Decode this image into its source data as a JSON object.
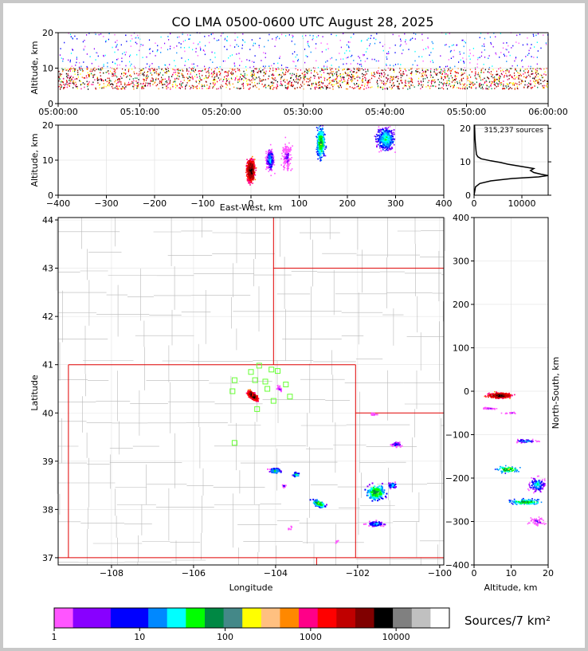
{
  "title": "CO LMA 0500-0600 UTC August 28, 2025",
  "source_count": "315,237 sources",
  "colorbar_label": "Sources/7 km²",
  "colors": {
    "frame": "#c8c8c8",
    "state_border": "#e00000",
    "county_border": "#b8b8b8",
    "station_marker": "#66ff33"
  },
  "chart_data": [
    {
      "id": "time_height",
      "type": "heatmap",
      "title": "CO LMA 0500-0600 UTC August 28, 2025",
      "xlabel": "",
      "ylabel": "Altitude, km",
      "x_ticks": [
        "05:00:00",
        "05:10:00",
        "05:20:00",
        "05:30:00",
        "05:40:00",
        "05:50:00",
        "06:00:00"
      ],
      "y_ticks": [
        0,
        10,
        20
      ],
      "ylim": [
        0,
        20
      ],
      "grid": true,
      "summary": {
        "dense_band_km": [
          4,
          10
        ],
        "sparse_top_km": 20
      }
    },
    {
      "id": "ew_height",
      "type": "heatmap",
      "xlabel": "East-West, km",
      "ylabel": "Altitude, km",
      "xlim": [
        -400,
        400
      ],
      "ylim": [
        0,
        20
      ],
      "x_ticks": [
        -400,
        -300,
        -200,
        -100,
        0,
        100,
        200,
        300,
        400
      ],
      "y_ticks": [
        0,
        10,
        20
      ],
      "grid": true,
      "clusters_x_km": [
        0,
        40,
        70,
        145,
        280
      ]
    },
    {
      "id": "alt_histogram",
      "type": "line",
      "xlabel": "",
      "ylabel": "",
      "xlim": [
        0,
        15500
      ],
      "ylim": [
        0,
        21
      ],
      "x_ticks": [
        0,
        10000
      ],
      "y_ticks": [
        0,
        10,
        20
      ],
      "annotation": "315,237 sources",
      "series": [
        {
          "x": [
            0,
            300,
            1200,
            3500,
            8000,
            13500,
            15500,
            14000,
            12500,
            11800,
            12500,
            9500,
            7000,
            5500,
            3500,
            1500,
            800,
            500,
            400,
            300,
            200,
            150,
            100
          ],
          "y": [
            0,
            2.5,
            3.5,
            4.3,
            5.0,
            5.5,
            5.9,
            6.3,
            6.8,
            7.4,
            8.0,
            8.7,
            9.3,
            9.8,
            10.3,
            10.9,
            11.5,
            12.2,
            13.5,
            15,
            17,
            19,
            21
          ]
        }
      ]
    },
    {
      "id": "plan_view",
      "type": "heatmap",
      "xlabel": "Longitude",
      "ylabel": "Latitude",
      "xlim": [
        -109.3,
        -99.9
      ],
      "ylim": [
        36.85,
        44.05
      ],
      "x_ticks": [
        -108,
        -106,
        -104,
        -102,
        -100
      ],
      "y_ticks": [
        37,
        38,
        39,
        40,
        41,
        42,
        43,
        44
      ],
      "grid": true
    },
    {
      "id": "ns_height",
      "type": "heatmap",
      "xlabel": "Altitude, km",
      "ylabel": "North-South, km",
      "xlim": [
        0,
        20
      ],
      "ylim": [
        -400,
        400
      ],
      "x_ticks": [
        0,
        10,
        20
      ],
      "y_ticks": [
        -400,
        -300,
        -200,
        -100,
        0,
        100,
        200,
        300,
        400
      ],
      "grid": true
    },
    {
      "id": "colorbar",
      "type": "table",
      "label": "Sources/7 km²",
      "ticks": [
        "1",
        "10",
        "100",
        "1000",
        "10000"
      ],
      "colors": [
        "#ff55ff",
        "#8800ff",
        "#8800ff",
        "#0000ff",
        "#0000ff",
        "#0088ff",
        "#00ffff",
        "#00ff00",
        "#008844",
        "#448888",
        "#ffff00",
        "#ffc080",
        "#ff8800",
        "#ff0088",
        "#ff0000",
        "#c00000",
        "#800000",
        "#000000",
        "#808080",
        "#c0c0c0",
        "#ffffff"
      ]
    }
  ]
}
